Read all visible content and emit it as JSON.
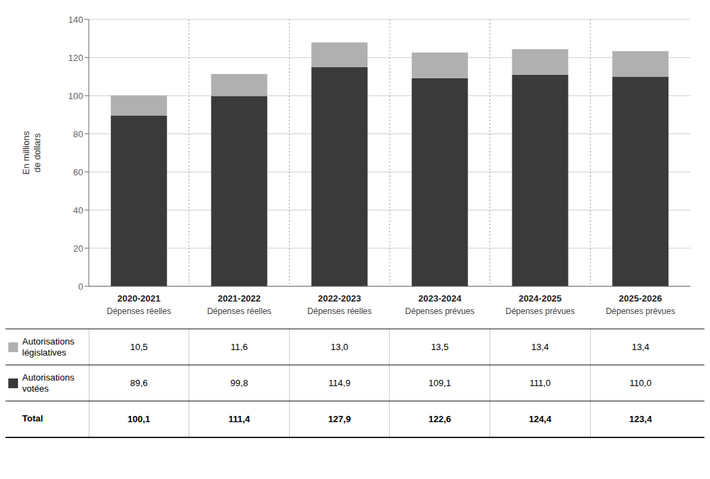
{
  "chart_data": {
    "type": "bar",
    "stacked": true,
    "categories": [
      "2020-2021",
      "2021-2022",
      "2022-2023",
      "2023-2024",
      "2024-2025",
      "2025-2026"
    ],
    "subtitles": [
      "Dépenses réelles",
      "Dépenses réelles",
      "Dépenses réelles",
      "Dépenses prévues",
      "Dépenses prévues",
      "Dépenses prévues"
    ],
    "ylabel": "En millions\nde dollars",
    "ylim": [
      0,
      140
    ],
    "yticks": [
      0,
      20,
      40,
      60,
      80,
      100,
      120,
      140
    ],
    "grid": true,
    "series": [
      {
        "name": "Autorisations votées",
        "color": "#3a3a3a",
        "values": [
          89.6,
          99.8,
          114.9,
          109.1,
          111.0,
          110.0
        ],
        "value_labels": [
          "89,6",
          "99,8",
          "114,9",
          "109,1",
          "111,0",
          "110,0"
        ]
      },
      {
        "name": "Autorisations législatives",
        "color": "#b0b0b0",
        "values": [
          10.5,
          11.6,
          13.0,
          13.5,
          13.4,
          13.4
        ],
        "value_labels": [
          "10,5",
          "11,6",
          "13,0",
          "13,5",
          "13,4",
          "13,4"
        ]
      }
    ],
    "totals": {
      "name": "Total",
      "values": [
        100.1,
        111.4,
        127.9,
        122.6,
        124.4,
        123.4
      ],
      "value_labels": [
        "100,1",
        "111,4",
        "127,9",
        "122,6",
        "124,4",
        "123,4"
      ]
    }
  }
}
